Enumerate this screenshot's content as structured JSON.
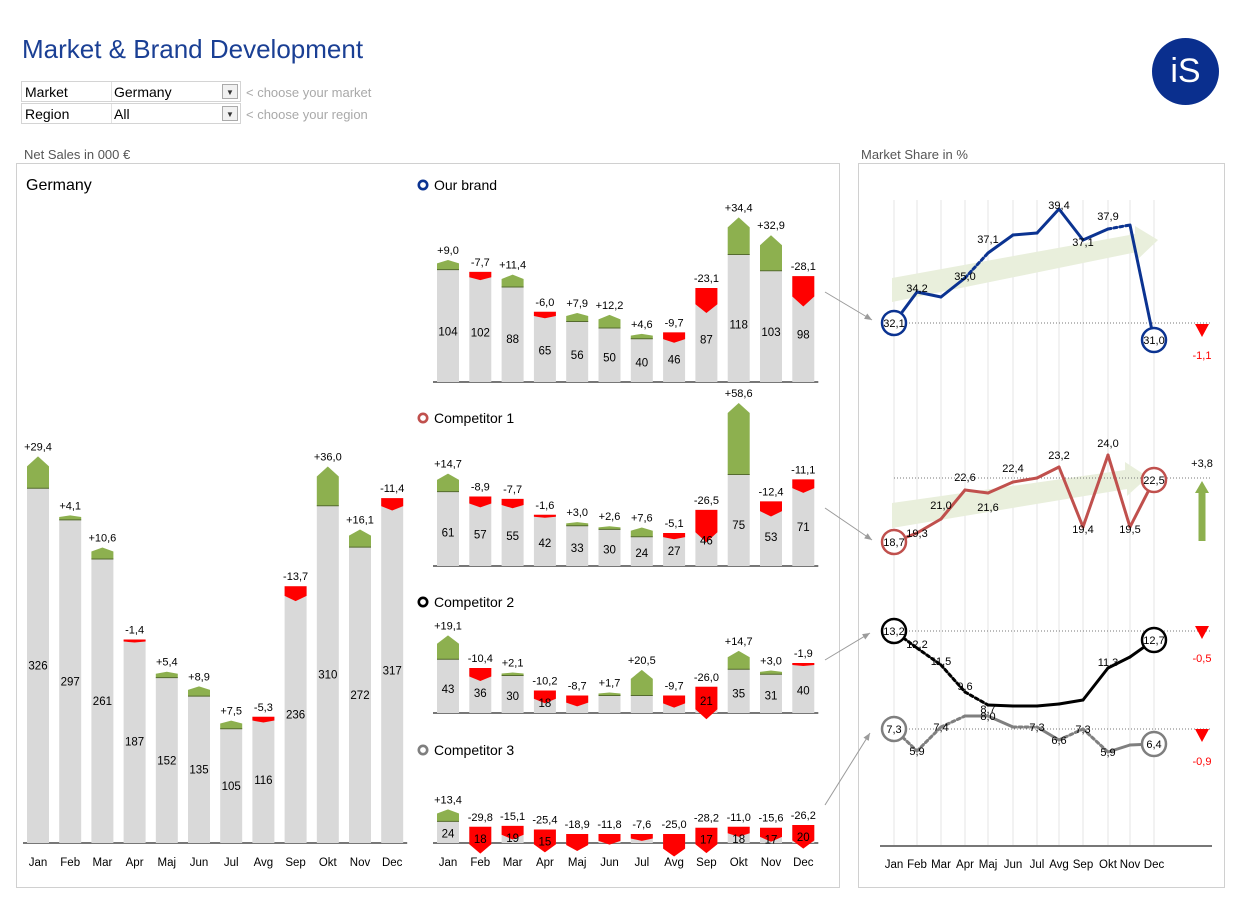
{
  "header": {
    "title": "Market & Brand Development",
    "logo_text": "iS",
    "market_label": "Market",
    "market_value": "Germany",
    "market_hint": "< choose your market",
    "region_label": "Region",
    "region_value": "All",
    "region_hint": "< choose your region"
  },
  "sections": {
    "net_sales": "Net Sales in 000 €",
    "market_share": "Market Share in %"
  },
  "colors": {
    "our_brand": "#0b3391",
    "competitor_1": "#c0504d",
    "competitor_2": "#000000",
    "competitor_3": "#7f7f7f",
    "bar": "#d9d9d9",
    "positive": "#8db04f",
    "negative": "#ff0000"
  },
  "chart_data": [
    {
      "type": "bar",
      "title": "Germany",
      "categories": [
        "Jan",
        "Feb",
        "Mar",
        "Apr",
        "Maj",
        "Jun",
        "Jul",
        "Avg",
        "Sep",
        "Okt",
        "Nov",
        "Dec"
      ],
      "values": [
        326,
        297,
        261,
        187,
        152,
        135,
        105,
        116,
        236,
        310,
        272,
        317
      ],
      "variance": [
        "+29,4",
        "+4,1",
        "+10,6",
        "-1,4",
        "+5,4",
        "+8,9",
        "+7,5",
        "-5,3",
        "-13,7",
        "+36,0",
        "+16,1",
        "-11,4"
      ]
    },
    {
      "type": "bar",
      "title": "Our brand",
      "categories": [
        "Jan",
        "Feb",
        "Mar",
        "Apr",
        "Maj",
        "Jun",
        "Jul",
        "Avg",
        "Sep",
        "Okt",
        "Nov",
        "Dec"
      ],
      "values": [
        104,
        102,
        88,
        65,
        56,
        50,
        40,
        46,
        87,
        118,
        103,
        98
      ],
      "variance": [
        "+9,0",
        "-7,7",
        "+11,4",
        "-6,0",
        "+7,9",
        "+12,2",
        "+4,6",
        "-9,7",
        "-23,1",
        "+34,4",
        "+32,9",
        "-28,1"
      ]
    },
    {
      "type": "bar",
      "title": "Competitor 1",
      "categories": [
        "Jan",
        "Feb",
        "Mar",
        "Apr",
        "Maj",
        "Jun",
        "Jul",
        "Avg",
        "Sep",
        "Okt",
        "Nov",
        "Dec"
      ],
      "values": [
        61,
        57,
        55,
        42,
        33,
        30,
        24,
        27,
        46,
        75,
        53,
        71
      ],
      "variance": [
        "+14,7",
        "-8,9",
        "-7,7",
        "-1,6",
        "+3,0",
        "+2,6",
        "+7,6",
        "-5,1",
        "-26,5",
        "+58,6",
        "-12,4",
        "-11,1"
      ]
    },
    {
      "type": "bar",
      "title": "Competitor 2",
      "categories": [
        "Jan",
        "Feb",
        "Mar",
        "Apr",
        "Maj",
        "Jun",
        "Jul",
        "Avg",
        "Sep",
        "Okt",
        "Nov",
        "Dec"
      ],
      "values": [
        43,
        36,
        30,
        18,
        "",
        "",
        "",
        "",
        21,
        35,
        31,
        40
      ],
      "variance": [
        "+19,1",
        "-10,4",
        "+2,1",
        "-10,2",
        "-8,7",
        "+1,7",
        "+20,5",
        "-9,7",
        "-26,0",
        "+14,7",
        "+3,0",
        "-1,9"
      ]
    },
    {
      "type": "bar",
      "title": "Competitor 3",
      "categories": [
        "Jan",
        "Feb",
        "Mar",
        "Apr",
        "Maj",
        "Jun",
        "Jul",
        "Avg",
        "Sep",
        "Okt",
        "Nov",
        "Dec"
      ],
      "values": [
        24,
        18,
        19,
        15,
        "",
        "",
        "",
        "",
        17,
        18,
        17,
        20
      ],
      "variance": [
        "+13,4",
        "-29,8",
        "-15,1",
        "-25,4",
        "-18,9",
        "-11,8",
        "-7,6",
        "-25,0",
        "-28,2",
        "-11,0",
        "-15,6",
        "-26,2"
      ]
    },
    {
      "type": "line",
      "title": "Market Share in %",
      "categories": [
        "Jan",
        "Feb",
        "Mar",
        "Apr",
        "Maj",
        "Jun",
        "Jul",
        "Avg",
        "Sep",
        "Okt",
        "Nov",
        "Dec"
      ],
      "series": [
        {
          "name": "Our brand",
          "labels": [
            "32,1",
            "34,2",
            "",
            "35,0",
            "37,1",
            "",
            "",
            "39,4",
            "37,1",
            "37,9",
            "",
            "31,0"
          ],
          "change": "-1,1"
        },
        {
          "name": "Competitor 1",
          "labels": [
            "18,7",
            "19,3",
            "21,0",
            "22,6",
            "21,6",
            "22,4",
            "",
            "23,2",
            "19,4",
            "24,0",
            "19,5",
            "22,5"
          ],
          "change": "+3,8"
        },
        {
          "name": "Competitor 2",
          "labels": [
            "13,2",
            "12,2",
            "11,5",
            "9,6",
            "8,7",
            "",
            "",
            "",
            "",
            "11,3",
            "",
            "12,7"
          ],
          "change": "-0,5"
        },
        {
          "name": "Competitor 3",
          "labels": [
            "7,3",
            "5,9",
            "7,4",
            "",
            "8,0",
            "",
            "7,3",
            "6,6",
            "7,3",
            "5,9",
            "",
            "6,4"
          ],
          "change": "-0,9"
        }
      ]
    }
  ]
}
